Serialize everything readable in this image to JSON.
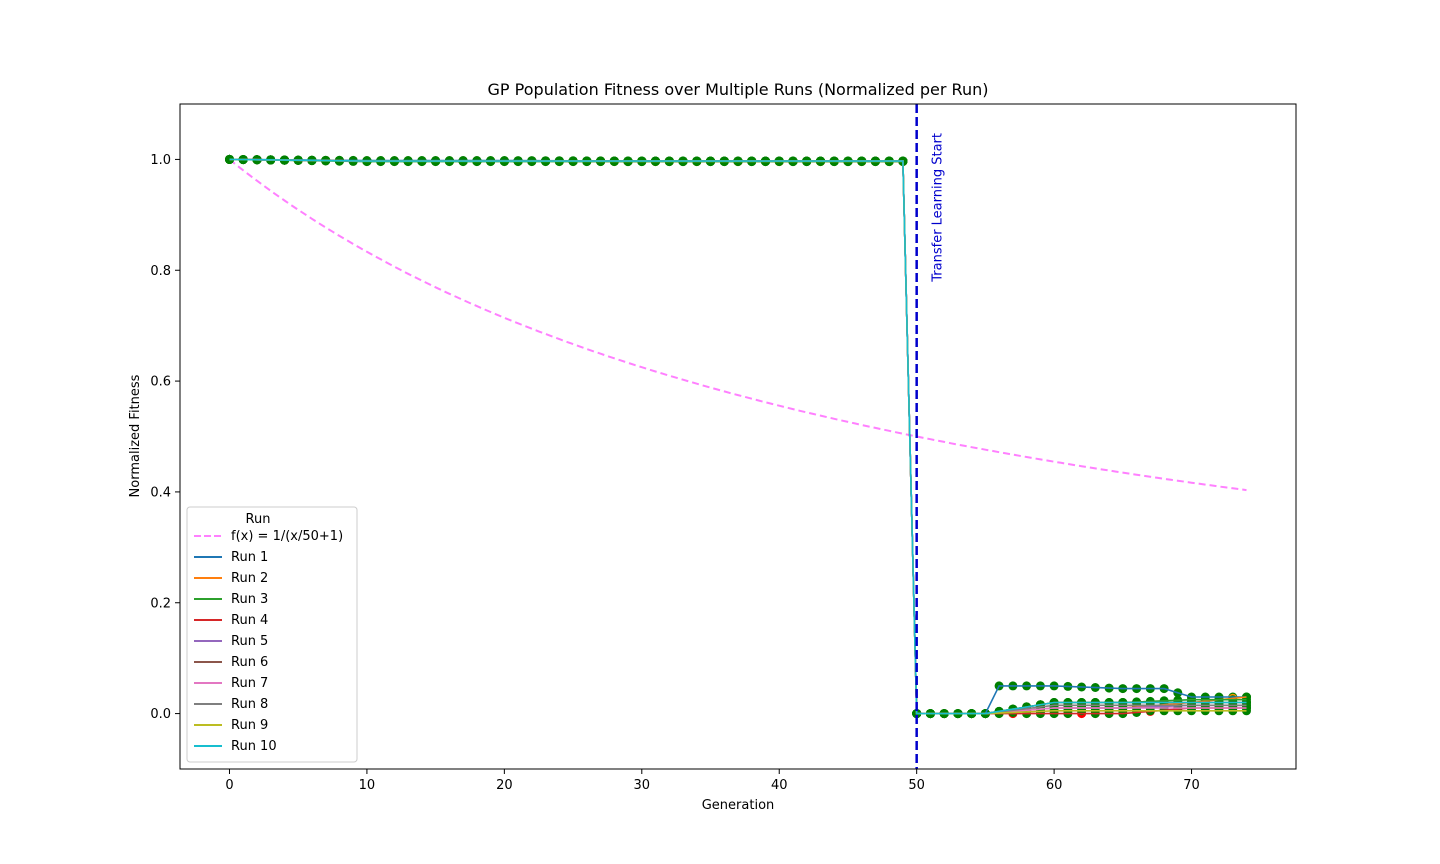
{
  "chart_data": {
    "type": "line",
    "title": "GP Population Fitness over Multiple Runs (Normalized per Run)",
    "xlabel": "Generation",
    "ylabel": "Normalized Fitness",
    "xlim": [
      -3.6,
      77.6
    ],
    "ylim": [
      -0.1,
      1.1
    ],
    "xticks": [
      0,
      10,
      20,
      30,
      40,
      50,
      60,
      70
    ],
    "yticks": [
      0.0,
      0.2,
      0.4,
      0.6,
      0.8,
      1.0
    ],
    "xtick_labels": [
      "0",
      "10",
      "20",
      "30",
      "40",
      "50",
      "60",
      "70"
    ],
    "ytick_labels": [
      "0.0",
      "0.2",
      "0.4",
      "0.6",
      "0.8",
      "1.0"
    ],
    "grid": false,
    "legend": {
      "title": "Run",
      "placement": "lower-left",
      "entries": [
        "f(x) = 1/(x/50+1)",
        "Run 1",
        "Run 2",
        "Run 3",
        "Run 4",
        "Run 5",
        "Run 6",
        "Run 7",
        "Run 8",
        "Run 9",
        "Run 10"
      ]
    },
    "reference_curve": {
      "name": "f(x) = 1/(x/50+1)",
      "color": "#ff80ff",
      "style": "dashed",
      "x": [
        0,
        5,
        10,
        15,
        20,
        25,
        30,
        35,
        40,
        45,
        50,
        55,
        60,
        65,
        70,
        74
      ],
      "y": [
        1.0,
        0.909,
        0.833,
        0.769,
        0.714,
        0.667,
        0.625,
        0.588,
        0.556,
        0.526,
        0.5,
        0.476,
        0.455,
        0.435,
        0.417,
        0.403
      ]
    },
    "vertical_line": {
      "x": 50,
      "label": "Transfer Learning Start",
      "color": "#0000cc"
    },
    "series": [
      {
        "name": "Run 1",
        "color": "#1f77b4",
        "x": [
          0,
          10,
          20,
          30,
          40,
          49,
          50,
          55,
          56,
          60,
          65,
          68,
          70,
          74
        ],
        "y": [
          1.0,
          0.998,
          0.998,
          0.997,
          0.997,
          0.997,
          0.0,
          0.0,
          0.05,
          0.05,
          0.045,
          0.045,
          0.03,
          0.03
        ]
      },
      {
        "name": "Run 2",
        "color": "#ff7f0e",
        "x": [
          0,
          10,
          20,
          30,
          40,
          49,
          50,
          55,
          60,
          65,
          70,
          74
        ],
        "y": [
          1.0,
          0.997,
          0.997,
          0.996,
          0.996,
          0.996,
          0.0,
          0.0,
          0.01,
          0.01,
          0.02,
          0.03
        ]
      },
      {
        "name": "Run 3",
        "color": "#2ca02c",
        "x": [
          0,
          10,
          20,
          30,
          40,
          49,
          50,
          55,
          60,
          65,
          70,
          74
        ],
        "y": [
          1.0,
          0.996,
          0.996,
          0.996,
          0.996,
          0.996,
          0.0,
          0.0,
          0.02,
          0.02,
          0.025,
          0.025
        ]
      },
      {
        "name": "Run 4",
        "color": "#d62728",
        "x": [
          0,
          10,
          20,
          30,
          40,
          49,
          50,
          55,
          60,
          65,
          70,
          74
        ],
        "y": [
          1.0,
          0.997,
          0.997,
          0.997,
          0.997,
          0.997,
          0.0,
          0.0,
          0.0,
          0.0,
          0.01,
          0.01
        ]
      },
      {
        "name": "Run 5",
        "color": "#9467bd",
        "x": [
          0,
          10,
          20,
          30,
          40,
          49,
          50,
          55,
          60,
          65,
          70,
          74
        ],
        "y": [
          1.0,
          0.997,
          0.997,
          0.997,
          0.997,
          0.997,
          0.0,
          0.0,
          0.01,
          0.01,
          0.015,
          0.015
        ]
      },
      {
        "name": "Run 6",
        "color": "#8c564b",
        "x": [
          0,
          10,
          20,
          30,
          40,
          49,
          50,
          55,
          60,
          65,
          70,
          74
        ],
        "y": [
          1.0,
          0.997,
          0.997,
          0.997,
          0.997,
          0.997,
          0.0,
          0.0,
          0.02,
          0.02,
          0.02,
          0.02
        ]
      },
      {
        "name": "Run 7",
        "color": "#e377c2",
        "x": [
          0,
          10,
          20,
          30,
          40,
          49,
          50,
          55,
          60,
          65,
          70,
          74
        ],
        "y": [
          1.0,
          0.997,
          0.997,
          0.997,
          0.997,
          0.997,
          0.0,
          0.0,
          0.01,
          0.01,
          0.01,
          0.01
        ]
      },
      {
        "name": "Run 8",
        "color": "#7f7f7f",
        "x": [
          0,
          10,
          20,
          30,
          40,
          49,
          50,
          55,
          60,
          65,
          70,
          74
        ],
        "y": [
          1.0,
          0.997,
          0.997,
          0.997,
          0.997,
          0.997,
          0.0,
          0.0,
          0.015,
          0.015,
          0.015,
          0.015
        ]
      },
      {
        "name": "Run 9",
        "color": "#bcbd22",
        "x": [
          0,
          10,
          20,
          30,
          40,
          49,
          50,
          55,
          60,
          65,
          70,
          74
        ],
        "y": [
          1.0,
          0.997,
          0.997,
          0.997,
          0.997,
          0.997,
          0.0,
          0.0,
          0.005,
          0.005,
          0.005,
          0.005
        ]
      },
      {
        "name": "Run 10",
        "color": "#17becf",
        "x": [
          0,
          10,
          20,
          30,
          40,
          49,
          50,
          55,
          60,
          65,
          70,
          74
        ],
        "y": [
          1.0,
          0.997,
          0.997,
          0.997,
          0.997,
          0.997,
          0.0,
          0.0,
          0.02,
          0.02,
          0.02,
          0.02
        ]
      }
    ],
    "markers": {
      "colors": [
        "#008000",
        "#ff0000",
        "#ff8c00"
      ],
      "description": "round markers on every generation of every run"
    }
  }
}
